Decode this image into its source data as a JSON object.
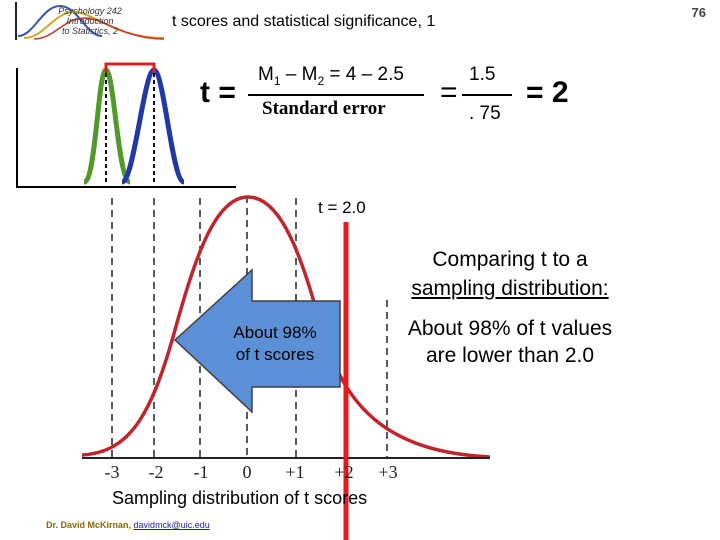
{
  "header": {
    "logo_text_lines": [
      "Psychology 242",
      "Introduction",
      "to Statistics, 2"
    ],
    "title": "t scores and statistical significance, 1",
    "slide_number": "76"
  },
  "formula": {
    "t_equals": "t =",
    "numerator_parts": [
      "M",
      "1",
      " – M",
      "2",
      " = 4 – 2.5"
    ],
    "denominator": "Standard error",
    "equals": "=",
    "numerator2": "1.5",
    "denominator2": ". 75",
    "result": "= 2"
  },
  "main": {
    "t_label": "t = 2.0",
    "compare_lines": [
      "Comparing t to a",
      "sampling distribution:"
    ],
    "about_lines": [
      "About 98% of t values",
      "are lower than 2.0"
    ],
    "arrow_lines": [
      "About 98%",
      "of t scores"
    ],
    "axis_ticks": [
      "-3",
      "-2",
      "-1",
      "0",
      "+1",
      "+2",
      "+3"
    ],
    "axis_title": "Sampling distribution of t scores"
  },
  "footer": {
    "author": "Dr. David McKirnan,",
    "email": "davidmck@uic.edu"
  },
  "colors": {
    "curve_red": "#c0252b",
    "t_line_red": "#e41a1c",
    "arrow_blue": "#5b8fd6",
    "mini_red": "#d62222",
    "mini_green": "#4f9a28",
    "mini_blue": "#1f3aa6"
  }
}
